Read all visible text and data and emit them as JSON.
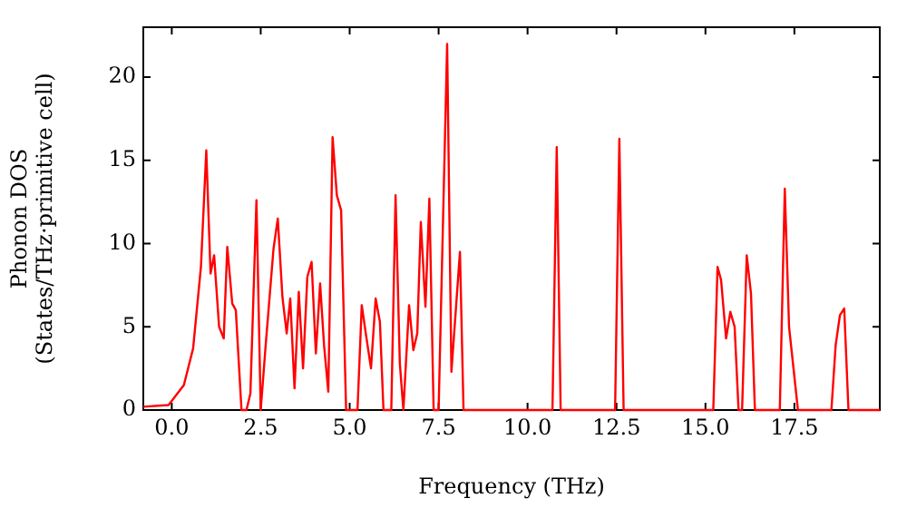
{
  "chart_data": {
    "type": "line",
    "xlabel": "Frequency (THz)",
    "ylabel": "Phonon DOS\n(States/THz·primitive cell)",
    "xlim": [
      -0.8,
      19.9
    ],
    "ylim": [
      0,
      23
    ],
    "xticks": [
      {
        "value": 0,
        "label": "0.0"
      },
      {
        "value": 2.5,
        "label": "2.5"
      },
      {
        "value": 5,
        "label": "5.0"
      },
      {
        "value": 7.5,
        "label": "7.5"
      },
      {
        "value": 10,
        "label": "10.0"
      },
      {
        "value": 12.5,
        "label": "12.5"
      },
      {
        "value": 15,
        "label": "15.0"
      },
      {
        "value": 17.5,
        "label": "17.5"
      }
    ],
    "yticks": [
      0,
      5,
      10,
      15,
      20
    ],
    "grid": false,
    "legend": false,
    "marker": "none",
    "line_style": "solid",
    "series": [
      {
        "color": "#ff0000",
        "x": [
          -0.8,
          -0.09,
          0.34,
          0.6,
          0.82,
          0.97,
          1.09,
          1.19,
          1.33,
          1.46,
          1.56,
          1.7,
          1.8,
          1.96,
          2.1,
          2.21,
          2.38,
          2.5,
          2.64,
          2.86,
          2.98,
          3.11,
          3.23,
          3.33,
          3.45,
          3.57,
          3.69,
          3.81,
          3.93,
          4.05,
          4.17,
          4.28,
          4.4,
          4.52,
          4.64,
          4.76,
          4.9,
          5.22,
          5.34,
          5.46,
          5.6,
          5.73,
          5.85,
          5.95,
          6.17,
          6.29,
          6.41,
          6.51,
          6.67,
          6.79,
          6.9,
          7.0,
          7.13,
          7.24,
          7.36,
          7.5,
          7.74,
          7.86,
          8.1,
          8.2,
          10.7,
          10.82,
          10.93,
          12.46,
          12.58,
          12.7,
          15.22,
          15.34,
          15.44,
          15.58,
          15.7,
          15.82,
          15.93,
          16.03,
          16.16,
          16.28,
          16.39,
          17.09,
          17.23,
          17.35,
          17.6,
          18.54,
          18.66,
          18.78,
          18.9,
          19.02,
          19.9
        ],
        "values": [
          0.2,
          0.3,
          1.5,
          3.7,
          8.6,
          15.6,
          8.2,
          9.3,
          5.0,
          4.3,
          9.8,
          6.4,
          6.0,
          0,
          0,
          1.0,
          12.6,
          0,
          3.9,
          9.7,
          11.5,
          6.8,
          4.6,
          6.7,
          1.3,
          7.1,
          2.5,
          8.0,
          8.9,
          3.4,
          7.6,
          3.9,
          1.1,
          16.4,
          12.9,
          12.0,
          0,
          0,
          6.3,
          4.5,
          2.5,
          6.7,
          5.3,
          0,
          0,
          12.9,
          2.8,
          0,
          6.3,
          3.6,
          4.6,
          11.3,
          6.2,
          12.7,
          0,
          0,
          22.0,
          2.3,
          9.5,
          0,
          0,
          15.8,
          0,
          0,
          16.3,
          0,
          0,
          8.6,
          7.8,
          4.3,
          5.9,
          5.0,
          0,
          0,
          9.3,
          7.0,
          0,
          0,
          13.3,
          5.0,
          0,
          0,
          3.9,
          5.7,
          6.1,
          0,
          0
        ]
      }
    ]
  }
}
